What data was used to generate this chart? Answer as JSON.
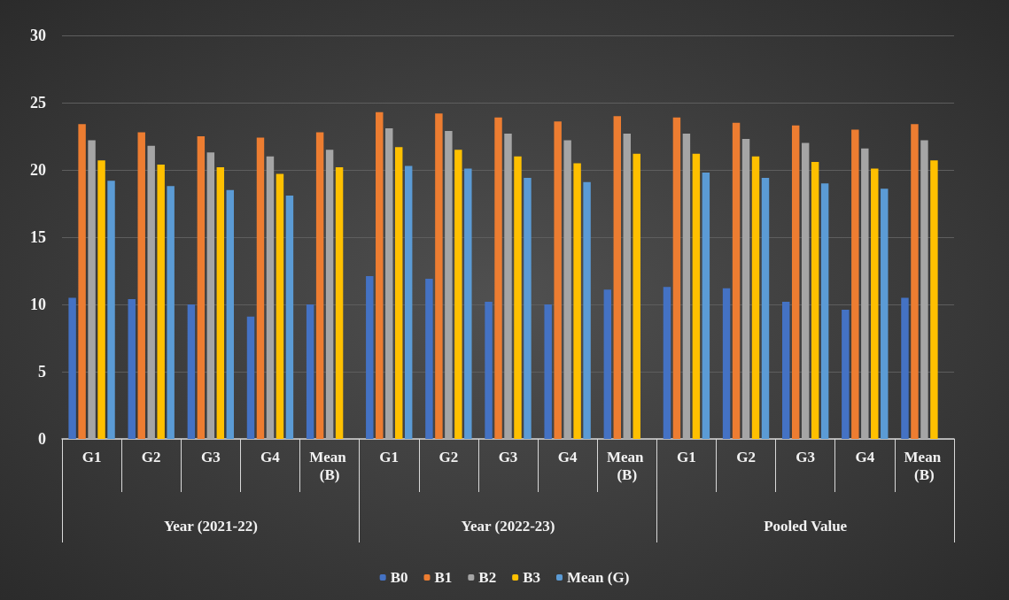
{
  "chart_data": {
    "type": "bar",
    "categories": [
      "G1",
      "G2",
      "G3",
      "G4",
      "Mean (B)",
      "G1",
      "G2",
      "G3",
      "G4",
      "Mean (B)",
      "G1",
      "G2",
      "G3",
      "G4",
      "Mean (B)"
    ],
    "annotations": [
      "Year (2021-22)",
      "Year (2022-23)",
      "Pooled Value"
    ],
    "series": [
      {
        "name": "B0",
        "color": "#4472c4",
        "values": [
          10.5,
          10.4,
          10.0,
          9.1,
          10.0,
          12.1,
          11.9,
          10.2,
          10.0,
          11.1,
          11.3,
          11.2,
          10.2,
          9.6,
          10.5
        ]
      },
      {
        "name": "B1",
        "color": "#ed7d31",
        "values": [
          23.4,
          22.8,
          22.5,
          22.4,
          22.8,
          24.3,
          24.2,
          23.9,
          23.6,
          24.0,
          23.9,
          23.5,
          23.3,
          23.0,
          23.4
        ]
      },
      {
        "name": "B2",
        "color": "#a5a5a5",
        "values": [
          22.2,
          21.8,
          21.3,
          21.0,
          21.5,
          23.1,
          22.9,
          22.7,
          22.2,
          22.7,
          22.7,
          22.3,
          22.0,
          21.6,
          22.2
        ]
      },
      {
        "name": "B3",
        "color": "#ffc000",
        "values": [
          20.7,
          20.4,
          20.2,
          19.7,
          20.2,
          21.7,
          21.5,
          21.0,
          20.5,
          21.2,
          21.2,
          21.0,
          20.6,
          20.1,
          20.7
        ]
      },
      {
        "name": "Mean (G)",
        "color": "#5b9bd5",
        "values": [
          19.2,
          18.8,
          18.5,
          18.1,
          null,
          20.3,
          20.1,
          19.4,
          19.1,
          null,
          19.8,
          19.4,
          19.0,
          18.6,
          null
        ]
      }
    ],
    "ylim": [
      0,
      30
    ],
    "yticks": [
      0,
      5,
      10,
      15,
      20,
      25,
      30
    ],
    "grid": "y",
    "legend": "bottom"
  }
}
